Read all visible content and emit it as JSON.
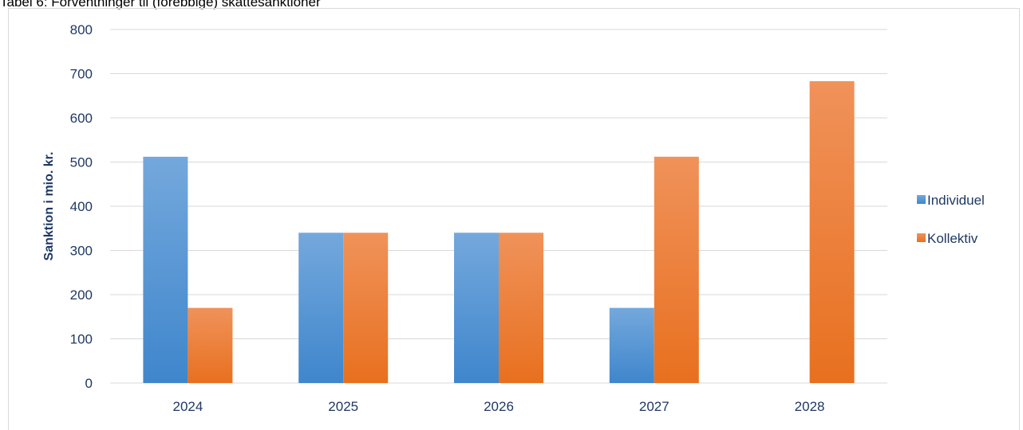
{
  "caption": "Tabel 6: Forventninger til (forebbige) skattesanktioner",
  "chart_data": {
    "type": "bar",
    "title": "",
    "xlabel": "",
    "ylabel": "Sanktion i mio. kr.",
    "categories": [
      "2024",
      "2025",
      "2026",
      "2027",
      "2028"
    ],
    "ylim": [
      0,
      800
    ],
    "yticks": [
      0,
      100,
      200,
      300,
      400,
      500,
      600,
      700,
      800
    ],
    "grid": true,
    "legend_position": "right",
    "series": [
      {
        "name": "Individuel",
        "values": [
          512,
          340,
          340,
          170,
          0
        ],
        "color_top": "#74a8dc",
        "color_bottom": "#3f86cc"
      },
      {
        "name": "Kollektiv",
        "values": [
          170,
          340,
          340,
          512,
          683
        ],
        "color_top": "#f0925a",
        "color_bottom": "#e8701f"
      }
    ]
  }
}
